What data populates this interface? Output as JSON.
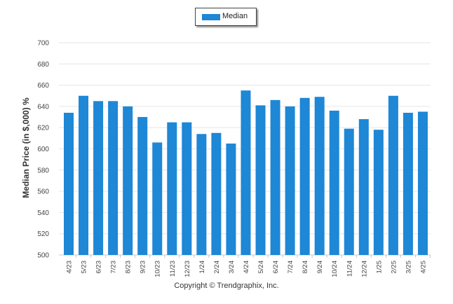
{
  "chart_data": {
    "type": "bar",
    "categories": [
      "4/23",
      "5/23",
      "6/23",
      "7/23",
      "8/23",
      "9/23",
      "10/23",
      "11/23",
      "12/23",
      "1/24",
      "2/24",
      "3/24",
      "4/24",
      "5/24",
      "6/24",
      "7/24",
      "8/24",
      "9/24",
      "10/24",
      "11/24",
      "12/24",
      "1/25",
      "2/25",
      "3/25",
      "4/25"
    ],
    "series": [
      {
        "name": "Median",
        "values": [
          634,
          650,
          645,
          645,
          640,
          630,
          606,
          625,
          625,
          614,
          615,
          605,
          655,
          641,
          646,
          640,
          648,
          649,
          636,
          619,
          628,
          618,
          650,
          634,
          635
        ]
      }
    ],
    "ylabel": "Median Price (in $,000) %",
    "xlabel": "",
    "ylim": [
      500,
      700
    ],
    "yticks": [
      500,
      520,
      540,
      560,
      580,
      600,
      620,
      640,
      660,
      680,
      700
    ],
    "grid": true,
    "legend": "top-center",
    "colors": {
      "bar": "#1e87d6"
    }
  },
  "footer": {
    "copyright": "Copyright © Trendgraphix, Inc."
  }
}
